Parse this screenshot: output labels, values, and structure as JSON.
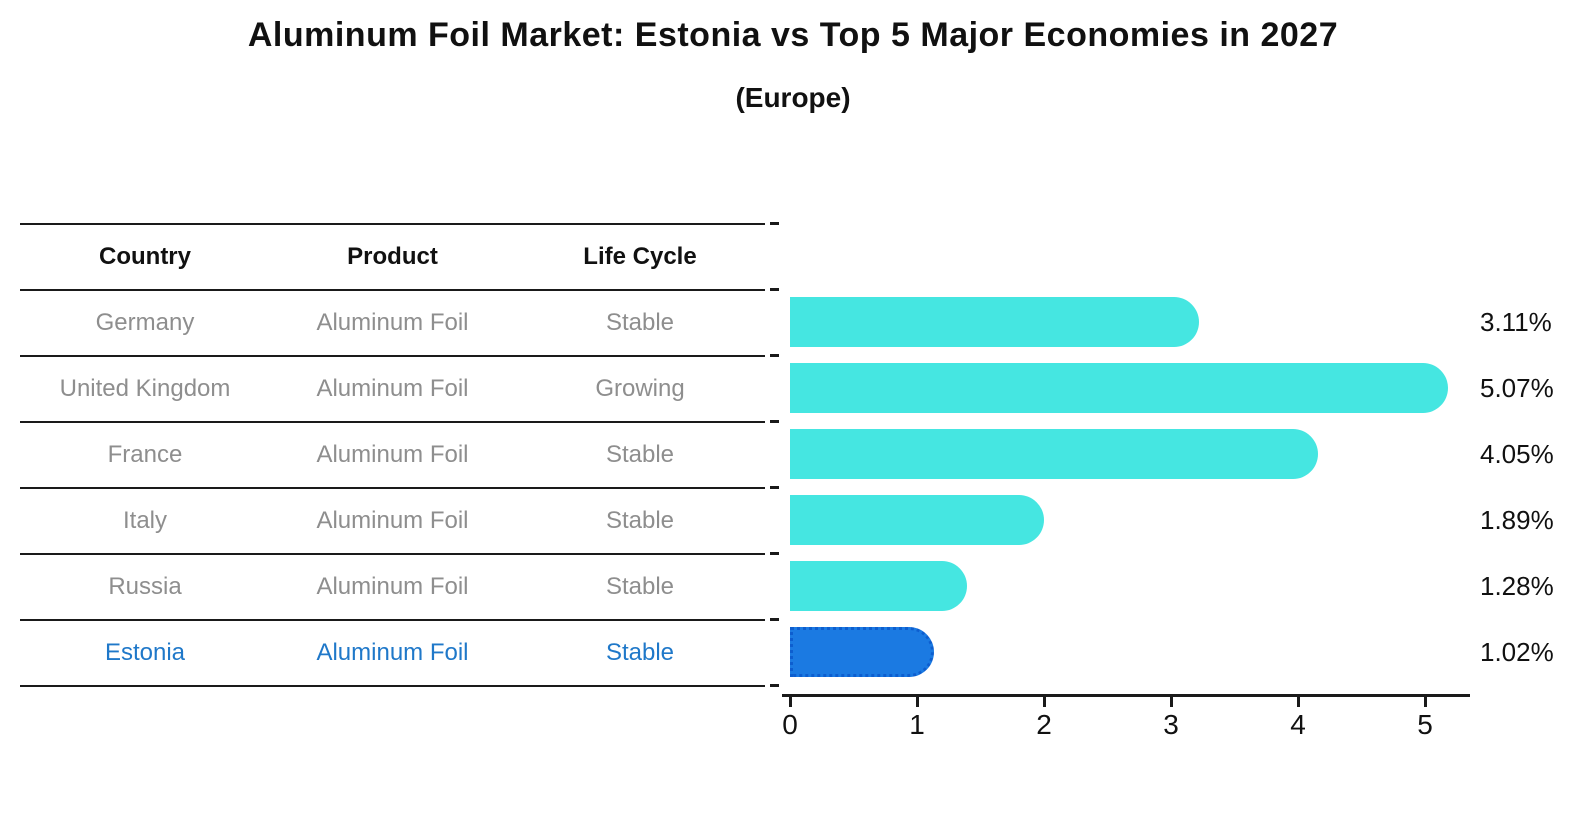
{
  "title": "Aluminum Foil Market: Estonia vs Top 5 Major Economies in 2027",
  "subtitle": "(Europe)",
  "table": {
    "headers": [
      "Country",
      "Product",
      "Life Cycle"
    ],
    "rows": [
      {
        "country": "Germany",
        "product": "Aluminum Foil",
        "life_cycle": "Stable"
      },
      {
        "country": "United Kingdom",
        "product": "Aluminum Foil",
        "life_cycle": "Growing"
      },
      {
        "country": "France",
        "product": "Aluminum Foil",
        "life_cycle": "Stable"
      },
      {
        "country": "Italy",
        "product": "Aluminum Foil",
        "life_cycle": "Stable"
      },
      {
        "country": "Russia",
        "product": "Aluminum Foil",
        "life_cycle": "Stable"
      },
      {
        "country": "Estonia",
        "product": "Aluminum Foil",
        "life_cycle": "Stable"
      }
    ]
  },
  "chart_data": {
    "type": "bar",
    "orientation": "horizontal",
    "title": "Aluminum Foil Market: Estonia vs Top 5 Major Economies in 2027",
    "subtitle": "(Europe)",
    "categories": [
      "Germany",
      "United Kingdom",
      "France",
      "Italy",
      "Russia",
      "Estonia"
    ],
    "values": [
      3.11,
      5.07,
      4.05,
      1.89,
      1.28,
      1.02
    ],
    "value_labels": [
      "3.11%",
      "5.07%",
      "4.05%",
      "1.89%",
      "1.28%",
      "1.02%"
    ],
    "xlabel": "",
    "ylabel": "",
    "xlim": [
      0,
      5.4
    ],
    "xticks": [
      0,
      1,
      2,
      3,
      4,
      5
    ],
    "xtick_labels": [
      "0",
      "1",
      "2",
      "3",
      "4",
      "5"
    ],
    "grid": false,
    "legend": "none",
    "highlight_category": "Estonia",
    "colors": {
      "bar": "#45e6e1",
      "highlight_bar": "#1b7ae2",
      "highlight_bar_border": "#0d5ecf",
      "highlight_text": "#1f78c9",
      "table_text": "#8e8e8e",
      "text": "#111111"
    }
  }
}
